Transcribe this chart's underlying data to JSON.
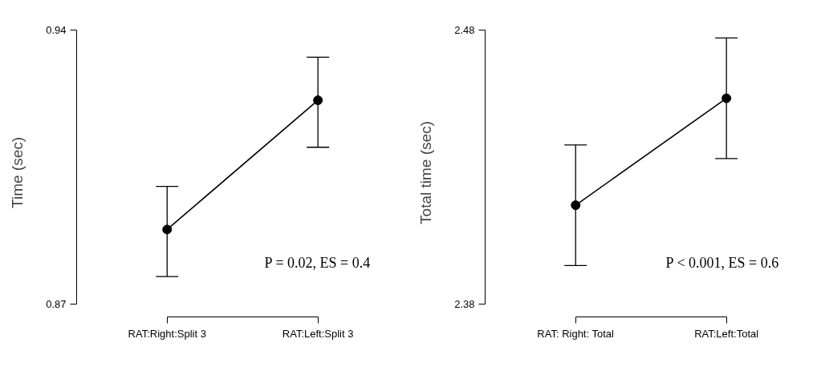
{
  "chart_data": [
    {
      "type": "line",
      "ylabel": "Time (sec)",
      "categories": [
        "RAT:Right:Split 3",
        "RAT:Left:Split 3"
      ],
      "ylim": [
        0.87,
        0.94
      ],
      "yticks": [
        0.87,
        0.94
      ],
      "grid": false,
      "marker": "circle",
      "line_style": "solid",
      "annotations": [
        "P = 0.02, ES = 0.4"
      ],
      "series": [
        {
          "color": "#000000",
          "values": [
            0.889,
            0.922
          ],
          "errors": [
            [
              0.877,
              0.9
            ],
            [
              0.91,
              0.933
            ]
          ]
        }
      ]
    },
    {
      "type": "line",
      "ylabel": "Total time (sec)",
      "categories": [
        "RAT: Right: Total",
        "RAT:Left:Total"
      ],
      "ylim": [
        2.38,
        2.48
      ],
      "yticks": [
        2.38,
        2.48
      ],
      "grid": false,
      "marker": "circle",
      "line_style": "solid",
      "annotations": [
        "P < 0.001, ES = 0.6"
      ],
      "series": [
        {
          "color": "#000000",
          "values": [
            2.416,
            2.455
          ],
          "errors": [
            [
              2.394,
              2.438
            ],
            [
              2.433,
              2.477
            ]
          ]
        }
      ]
    }
  ]
}
